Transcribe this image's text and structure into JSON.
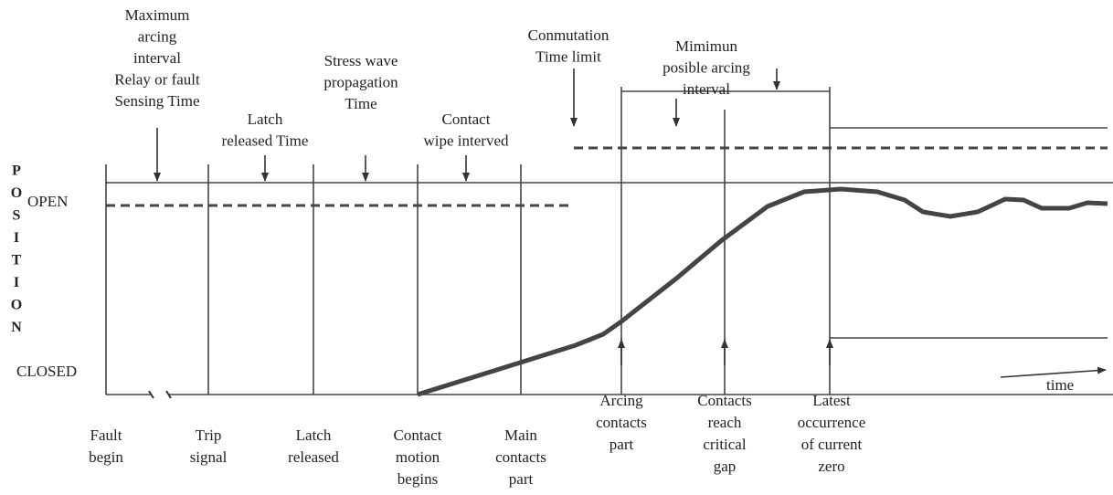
{
  "side_label": [
    "P",
    "O",
    "S",
    "I",
    "T",
    "I",
    "O",
    "N"
  ],
  "levels": {
    "open": "OPEN",
    "closed": "CLOSED"
  },
  "time_label": "time",
  "top_labels": [
    {
      "lines": [
        "Maximum",
        "arcing",
        "interval",
        "Relay or fault",
        "Sensing Time"
      ]
    },
    {
      "lines": [
        "Latch",
        "released Time"
      ]
    },
    {
      "lines": [
        "Stress wave",
        "propagation",
        "Time"
      ]
    },
    {
      "lines": [
        "Contact",
        "wipe interved"
      ]
    },
    {
      "lines": [
        "Conmutation",
        "Time limit"
      ]
    },
    {
      "lines": [
        "Mimimun",
        "posible arcing",
        "interval"
      ]
    }
  ],
  "bottom_labels": [
    {
      "lines": [
        "Fault",
        "begin"
      ]
    },
    {
      "lines": [
        "Trip",
        "signal"
      ]
    },
    {
      "lines": [
        "Latch",
        "released"
      ]
    },
    {
      "lines": [
        "Contact",
        "motion",
        "begins"
      ]
    },
    {
      "lines": [
        "Main",
        "contacts",
        "part"
      ]
    },
    {
      "lines": [
        "Arcing",
        "contacts",
        "part"
      ]
    },
    {
      "lines": [
        "Contacts",
        "reach",
        "critical",
        "gap"
      ]
    },
    {
      "lines": [
        "Latest",
        "occurrence",
        "of current",
        "zero"
      ]
    }
  ]
}
